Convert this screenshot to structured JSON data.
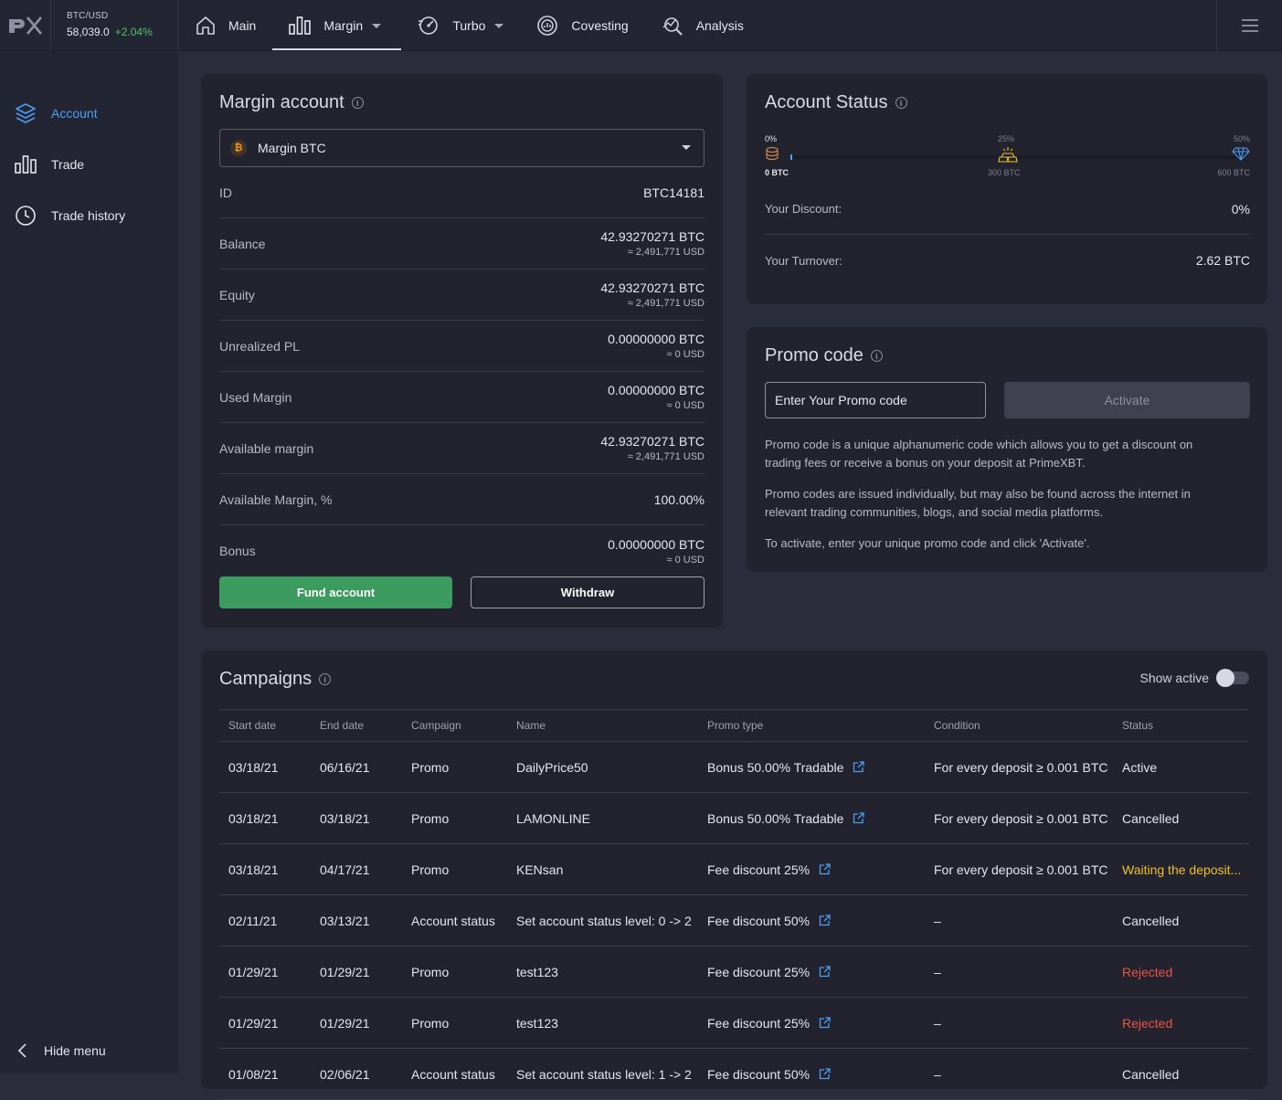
{
  "topbar": {
    "ticker": {
      "pair": "BTC/USD",
      "price": "58,039.0",
      "change": "+2.04%"
    },
    "nav": [
      {
        "label": "Main",
        "icon": "home-icon"
      },
      {
        "label": "Margin",
        "icon": "bar-chart-icon",
        "active": true
      },
      {
        "label": "Turbo",
        "icon": "turbo-icon"
      },
      {
        "label": "Covesting",
        "icon": "covesting-icon"
      },
      {
        "label": "Analysis",
        "icon": "analysis-icon"
      }
    ]
  },
  "sidebar": {
    "items": [
      {
        "label": "Account",
        "icon": "layers-icon",
        "active": true
      },
      {
        "label": "Trade",
        "icon": "bar-chart-icon"
      },
      {
        "label": "Trade history",
        "icon": "clock-icon"
      }
    ],
    "hide_menu": "Hide menu"
  },
  "margin_account": {
    "title": "Margin account",
    "selected_account": "Margin BTC",
    "coin_glyph": "₿",
    "rows": [
      {
        "label": "ID",
        "value": "BTC14181",
        "sub": ""
      },
      {
        "label": "Balance",
        "value": "42.93270271 BTC",
        "sub": "≈ 2,491,771 USD"
      },
      {
        "label": "Equity",
        "value": "42.93270271 BTC",
        "sub": "≈ 2,491,771 USD"
      },
      {
        "label": "Unrealized PL",
        "value": "0.00000000 BTC",
        "sub": "≈ 0 USD"
      },
      {
        "label": "Used Margin",
        "value": "0.00000000 BTC",
        "sub": "≈ 0 USD"
      },
      {
        "label": "Available margin",
        "value": "42.93270271 BTC",
        "sub": "≈ 2,491,771 USD"
      },
      {
        "label": "Available Margin, %",
        "value": "100.00%",
        "sub": ""
      },
      {
        "label": "Bonus",
        "value": "0.00000000 BTC",
        "sub": "≈ 0 USD"
      }
    ],
    "fund_label": "Fund account",
    "withdraw_label": "Withdraw"
  },
  "account_status": {
    "title": "Account Status",
    "progress": 0.0,
    "levels": [
      {
        "pct": "0%",
        "amount": "0 BTC"
      },
      {
        "pct": "25%",
        "amount": "300 BTC"
      },
      {
        "pct": "50%",
        "amount": "600 BTC"
      }
    ],
    "discount_label": "Your Discount:",
    "discount_value": "0%",
    "turnover_label": "Your Turnover:",
    "turnover_value": "2.62 BTC"
  },
  "promo": {
    "title": "Promo code",
    "placeholder": "Enter Your Promo code",
    "activate_label": "Activate",
    "paragraphs": [
      "Promo code is a unique alphanumeric code which allows you to get a discount on trading fees or receive a bonus on your deposit at PrimeXBT.",
      "Promo codes are issued individually, but may also be found across the internet in relevant trading communities, blogs, and social media platforms.",
      "To activate, enter your unique promo code and click 'Activate'."
    ]
  },
  "campaigns": {
    "title": "Campaigns",
    "show_active_label": "Show active",
    "headers": [
      "Start date",
      "End date",
      "Campaign",
      "Name",
      "Promo type",
      "Condition",
      "Status"
    ],
    "rows": [
      {
        "start": "03/18/21",
        "end": "06/16/21",
        "campaign": "Promo",
        "name": "DailyPrice50",
        "promo_type": "Bonus 50.00% Tradable",
        "condition": "For every deposit ≥ 0.001 BTC",
        "status": "Active",
        "status_color": "#e6e7ee"
      },
      {
        "start": "03/18/21",
        "end": "03/18/21",
        "campaign": "Promo",
        "name": "LAMONLINE",
        "promo_type": "Bonus 50.00% Tradable",
        "condition": "For every deposit ≥ 0.001 BTC",
        "status": "Cancelled",
        "status_color": "#e6e7ee"
      },
      {
        "start": "03/18/21",
        "end": "04/17/21",
        "campaign": "Promo",
        "name": "KENsan",
        "promo_type": "Fee discount 25%",
        "condition": "For every deposit ≥ 0.001 BTC",
        "status": "Waiting the deposit...",
        "status_color": "#f0c02a"
      },
      {
        "start": "02/11/21",
        "end": "03/13/21",
        "campaign": "Account status",
        "name": "Set account status level: 0 -> 2",
        "promo_type": "Fee discount 50%",
        "condition": "–",
        "status": "Cancelled",
        "status_color": "#e6e7ee"
      },
      {
        "start": "01/29/21",
        "end": "01/29/21",
        "campaign": "Promo",
        "name": "test123",
        "promo_type": "Fee discount 25%",
        "condition": "–",
        "status": "Rejected",
        "status_color": "#ea5443"
      },
      {
        "start": "01/29/21",
        "end": "01/29/21",
        "campaign": "Promo",
        "name": "test123",
        "promo_type": "Fee discount 25%",
        "condition": "–",
        "status": "Rejected",
        "status_color": "#ea5443"
      },
      {
        "start": "01/08/21",
        "end": "02/06/21",
        "campaign": "Account status",
        "name": "Set account status level: 1 -> 2",
        "promo_type": "Fee discount 50%",
        "condition": "–",
        "status": "Cancelled",
        "status_color": "#e6e7ee"
      }
    ]
  },
  "colors": {
    "accent": "#4a9ff5",
    "green": "#3c9b5e",
    "positive": "#4ec56f",
    "warning": "#f0c02a",
    "danger": "#ea5443"
  }
}
